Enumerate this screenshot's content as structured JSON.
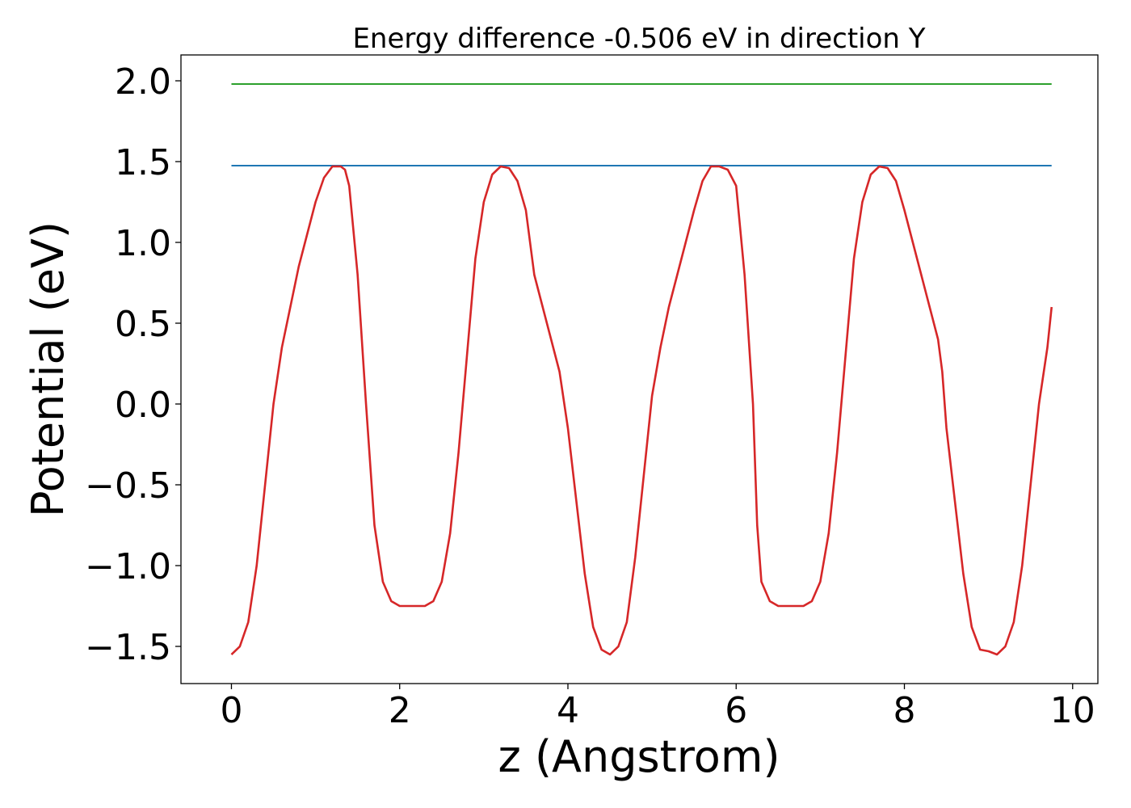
{
  "chart_data": {
    "type": "line",
    "title": "Energy difference -0.506 eV in direction Y",
    "xlabel": "z (Angstrom)",
    "ylabel": "Potential (eV)",
    "xlim": [
      -0.6,
      10.3
    ],
    "ylim": [
      -1.73,
      2.16
    ],
    "grid": false,
    "xticks": [
      0,
      2,
      4,
      6,
      8,
      10
    ],
    "xtick_labels": [
      "0",
      "2",
      "4",
      "6",
      "8",
      "10"
    ],
    "yticks": [
      -1.5,
      -1.0,
      -0.5,
      0.0,
      0.5,
      1.0,
      1.5,
      2.0
    ],
    "ytick_labels": [
      "−1.5",
      "−1.0",
      "−0.5",
      "0.0",
      "0.5",
      "1.0",
      "1.5",
      "2.0"
    ],
    "series": [
      {
        "color": "#2ca02c",
        "x": [
          0.0,
          9.75
        ],
        "y": [
          1.98,
          1.98
        ]
      },
      {
        "color": "#1f77b4",
        "x": [
          0.0,
          9.75
        ],
        "y": [
          1.475,
          1.475
        ]
      },
      {
        "color": "#d62728",
        "x": [
          0.0,
          0.1,
          0.2,
          0.3,
          0.4,
          0.5,
          0.6,
          0.7,
          0.8,
          0.9,
          1.0,
          1.1,
          1.2,
          1.3,
          1.35,
          1.4,
          1.5,
          1.6,
          1.7,
          1.8,
          1.9,
          2.0,
          2.1,
          2.2,
          2.3,
          2.4,
          2.5,
          2.6,
          2.7,
          2.8,
          2.9,
          3.0,
          3.1,
          3.2,
          3.3,
          3.4,
          3.5,
          3.55,
          3.6,
          3.7,
          3.8,
          3.9,
          4.0,
          4.1,
          4.2,
          4.3,
          4.4,
          4.5,
          4.6,
          4.7,
          4.8,
          4.9,
          5.0,
          5.1,
          5.2,
          5.3,
          5.4,
          5.5,
          5.6,
          5.7,
          5.8,
          5.9,
          6.0,
          6.1,
          6.2,
          6.25,
          6.3,
          6.4,
          6.5,
          6.6,
          6.7,
          6.8,
          6.9,
          7.0,
          7.1,
          7.2,
          7.3,
          7.4,
          7.5,
          7.6,
          7.7,
          7.8,
          7.9,
          8.0,
          8.1,
          8.2,
          8.3,
          8.4,
          8.45,
          8.5,
          8.6,
          8.7,
          8.8,
          8.9,
          9.0,
          9.1,
          9.2,
          9.3,
          9.4,
          9.5,
          9.6,
          9.7,
          9.75
        ],
        "y": [
          -1.55,
          -1.5,
          -1.35,
          -1.0,
          -0.5,
          0.0,
          0.35,
          0.6,
          0.85,
          1.05,
          1.25,
          1.4,
          1.47,
          1.47,
          1.45,
          1.35,
          0.8,
          0.0,
          -0.75,
          -1.1,
          -1.22,
          -1.25,
          -1.25,
          -1.25,
          -1.25,
          -1.22,
          -1.1,
          -0.8,
          -0.3,
          0.3,
          0.9,
          1.25,
          1.42,
          1.47,
          1.46,
          1.38,
          1.2,
          1.0,
          0.8,
          0.6,
          0.4,
          0.2,
          -0.15,
          -0.6,
          -1.05,
          -1.38,
          -1.52,
          -1.55,
          -1.5,
          -1.35,
          -0.95,
          -0.45,
          0.05,
          0.35,
          0.6,
          0.8,
          1.0,
          1.2,
          1.38,
          1.47,
          1.47,
          1.45,
          1.35,
          0.8,
          0.0,
          -0.75,
          -1.1,
          -1.22,
          -1.25,
          -1.25,
          -1.25,
          -1.25,
          -1.22,
          -1.1,
          -0.8,
          -0.3,
          0.3,
          0.9,
          1.25,
          1.42,
          1.47,
          1.46,
          1.38,
          1.2,
          1.0,
          0.8,
          0.6,
          0.4,
          0.2,
          -0.15,
          -0.6,
          -1.05,
          -1.38,
          -1.52,
          -1.53,
          -1.55,
          -1.5,
          -1.35,
          -1.0,
          -0.5,
          0.0,
          0.35,
          0.6
        ]
      }
    ]
  }
}
